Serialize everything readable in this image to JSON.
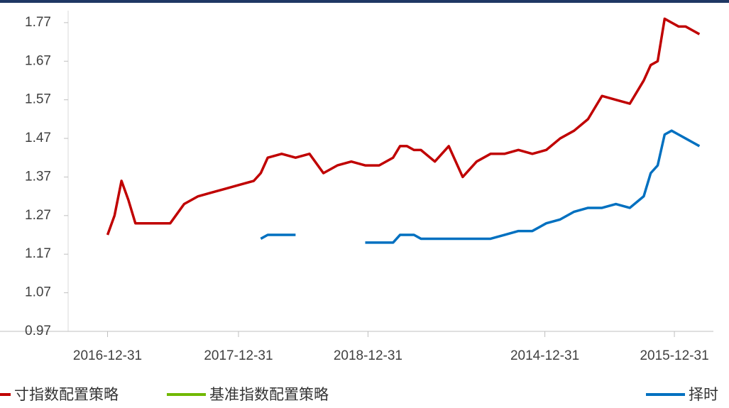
{
  "chart_data": {
    "type": "line",
    "x": [
      13,
      14,
      15,
      16,
      17,
      18,
      20,
      22,
      24,
      26,
      28,
      30,
      32,
      34,
      35,
      36,
      38,
      40,
      42,
      44,
      46,
      48,
      50,
      52,
      54,
      55,
      56,
      57,
      58,
      60,
      62,
      64,
      66,
      68,
      70,
      72,
      74,
      76,
      78,
      80,
      82,
      84,
      86,
      88,
      90,
      91,
      92,
      93,
      94,
      95,
      96,
      97,
      98
    ],
    "series": [
      {
        "name": "寸指数配置策略",
        "color": "#c00000",
        "values": [
          1.22,
          1.27,
          1.36,
          1.31,
          1.25,
          1.25,
          1.25,
          1.25,
          1.3,
          1.32,
          1.33,
          1.34,
          1.35,
          1.36,
          1.38,
          1.42,
          1.43,
          1.42,
          1.43,
          1.38,
          1.4,
          1.41,
          1.4,
          1.4,
          1.42,
          1.45,
          1.45,
          1.44,
          1.44,
          1.41,
          1.45,
          1.37,
          1.41,
          1.43,
          1.43,
          1.44,
          1.43,
          1.44,
          1.47,
          1.49,
          1.52,
          1.58,
          1.57,
          1.56,
          1.62,
          1.66,
          1.67,
          1.78,
          1.77,
          1.76,
          1.76,
          1.75,
          1.74
        ]
      },
      {
        "name": "基准指数配置策略",
        "color": "#70b800",
        "values": [
          null,
          null,
          null,
          null,
          null,
          null,
          null,
          null,
          null,
          null,
          null,
          null,
          null,
          null,
          null,
          null,
          null,
          null,
          null,
          null,
          null,
          null,
          null,
          null,
          null,
          null,
          null,
          null,
          null,
          null,
          null,
          null,
          null,
          null,
          null,
          null,
          null,
          null,
          null,
          null,
          null,
          null,
          null,
          null,
          null,
          null,
          null,
          null,
          null,
          null,
          null,
          null,
          null
        ]
      },
      {
        "name": "择时",
        "color": "#0070c0",
        "values": [
          null,
          null,
          null,
          null,
          null,
          null,
          null,
          null,
          null,
          null,
          null,
          null,
          null,
          null,
          1.21,
          1.22,
          1.22,
          1.22,
          null,
          null,
          null,
          null,
          1.2,
          1.2,
          1.2,
          1.22,
          1.22,
          1.22,
          1.21,
          1.21,
          1.21,
          1.21,
          1.21,
          1.21,
          1.22,
          1.23,
          1.23,
          1.25,
          1.26,
          1.28,
          1.29,
          1.29,
          1.3,
          1.29,
          1.32,
          1.38,
          1.4,
          1.48,
          1.49,
          1.48,
          1.47,
          1.46,
          1.45
        ]
      }
    ],
    "xlim": [
      0,
      100
    ],
    "xticks": [
      {
        "value": 13,
        "label": "2016-12-31"
      },
      {
        "value": 31.8,
        "label": "2017-12-31"
      },
      {
        "value": 50.4,
        "label": "2018-12-31"
      },
      {
        "value": 75.8,
        "label": "2014-12-31"
      },
      {
        "value": 94.4,
        "label": "2015-12-31"
      }
    ],
    "ylim": [
      0.97,
      1.79
    ],
    "yticks": [
      0.97,
      1.07,
      1.17,
      1.27,
      1.37,
      1.47,
      1.57,
      1.67,
      1.77
    ]
  }
}
